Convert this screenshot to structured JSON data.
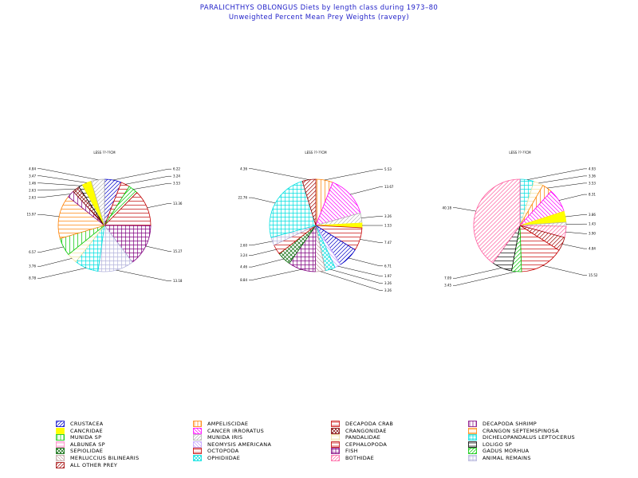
{
  "title": "PARALICHTHYS OBLONGUS Diets by length class during 1973–80",
  "subtitle": "Unweighted Percent Mean Prey Weights (ravepy)",
  "chart_data": [
    {
      "type": "pie",
      "title": "LESS ??-??CM",
      "slices": [
        {
          "category": "CRUSTACEA",
          "value": 6.22
        },
        {
          "category": "OCTOPODA",
          "value": 3.24
        },
        {
          "category": "GADUS MORHUA",
          "value": 3.53
        },
        {
          "category": "CEPHALOPODA",
          "value": 13.36
        },
        {
          "category": "FISH",
          "value": 15.27
        },
        {
          "category": "ANIMAL REMAINS",
          "value": 13.18
        },
        {
          "category": "DICHELOPANDALUS LEPTOCERUS",
          "value": 8.78
        },
        {
          "category": "PANDALIDAE",
          "value": 3.76
        },
        {
          "category": "MUNIDA SP",
          "value": 6.57
        },
        {
          "category": "CRANGON SEPTEMSPINOSA",
          "value": 15.97
        },
        {
          "category": "DECAPODA SHRIMP",
          "value": 2.63
        },
        {
          "category": "CRANGONIDAE",
          "value": 2.63
        },
        {
          "category": "LOLIGO SP",
          "value": 1.46
        },
        {
          "category": "CANCRIDAE",
          "value": 3.47
        },
        {
          "category": "MUNIDA IRIS",
          "value": 4.84
        }
      ],
      "labels": [
        "15.97",
        "6.57",
        "3.76",
        "8.78",
        "13.18",
        "2.63",
        "2.63",
        "1.46",
        "3.47",
        "4.84",
        "6.22",
        "3.24",
        "3.53",
        "13.36",
        "15.27"
      ]
    },
    {
      "type": "pie",
      "title": "LESS ??-??CM",
      "slices": [
        {
          "category": "AMPELISCIDAE",
          "value": 5.53
        },
        {
          "category": "CANCER IRRORATUS",
          "value": 13.67
        },
        {
          "category": "MUNIDA IRIS",
          "value": 3.26
        },
        {
          "category": "CANCRIDAE",
          "value": 1.53
        },
        {
          "category": "DECAPODA CRAB",
          "value": 7.47
        },
        {
          "category": "CRUSTACEA",
          "value": 6.71
        },
        {
          "category": "NEOMYSIS AMERICANA",
          "value": 1.97
        },
        {
          "category": "OPHIDIIDAE",
          "value": 3.26
        },
        {
          "category": "MERLUCCIUS BILINEARIS",
          "value": 3.26
        },
        {
          "category": "FISH",
          "value": 8.84
        },
        {
          "category": "SEPIOLIDAE",
          "value": 4.46
        },
        {
          "category": "OCTOPODA",
          "value": 3.24
        },
        {
          "category": "ANIMAL REMAINS",
          "value": 2.6
        },
        {
          "category": "DICHELOPANDALUS LEPTOCERUS",
          "value": 22.76
        },
        {
          "category": "ALL OTHER PREY",
          "value": 4.36
        }
      ],
      "labels": [
        "4.36",
        "5.53",
        "22.76",
        "2.60",
        "3.24",
        "4.46",
        "13.67",
        "3.26",
        "1.53",
        "7.47",
        "6.71",
        "1.97",
        "3.26",
        "3.26",
        "8.84"
      ]
    },
    {
      "type": "pie",
      "title": "LESS ??-??CM",
      "slices": [
        {
          "category": "DICHELOPANDALUS LEPTOCERUS",
          "value": 4.93
        },
        {
          "category": "PANDALIDAE",
          "value": 3.36
        },
        {
          "category": "AMPELISCIDAE",
          "value": 3.53
        },
        {
          "category": "CANCER IRRORATUS",
          "value": 8.31
        },
        {
          "category": "CANCRIDAE",
          "value": 3.86
        },
        {
          "category": "MUNIDA IRIS",
          "value": 1.43
        },
        {
          "category": "BOTHIDAE",
          "value": 3.9
        },
        {
          "category": "ALL OTHER PREY",
          "value": 4.84
        },
        {
          "category": "DECAPODA CRAB",
          "value": 15.52
        },
        {
          "category": "GADUS MORHUA",
          "value": 3.45
        },
        {
          "category": "LOLIGO SP",
          "value": 7.09
        },
        {
          "category": "BOTHIDAE",
          "value": 40.18
        }
      ],
      "labels": [
        "40.18",
        "4.93",
        "3.36",
        "3.53",
        "8.31",
        "3.86",
        "1.43",
        "3.90",
        "4.84",
        "15.52",
        "7.09",
        "3.45"
      ]
    }
  ],
  "legend": [
    {
      "name": "CRUSTACEA",
      "color": "#0000c8",
      "pattern": "diag-r"
    },
    {
      "name": "AMPELISCIDAE",
      "color": "#ff8000",
      "pattern": "vert"
    },
    {
      "name": "DECAPODA CRAB",
      "color": "#c80000",
      "pattern": "horiz"
    },
    {
      "name": "DECAPODA SHRIMP",
      "color": "#800080",
      "pattern": "vert"
    },
    {
      "name": "CANCRIDAE",
      "color": "#ffff00",
      "pattern": "solid"
    },
    {
      "name": "CANCER IRRORATUS",
      "color": "#ff00ff",
      "pattern": "diag-l"
    },
    {
      "name": "CRANGONIDAE",
      "color": "#800000",
      "pattern": "cross-diag"
    },
    {
      "name": "CRANGON SEPTEMSPINOSA",
      "color": "#ff8000",
      "pattern": "horiz"
    },
    {
      "name": "MUNIDA SP",
      "color": "#00c800",
      "pattern": "vert"
    },
    {
      "name": "MUNIDA IRIS",
      "color": "#b4b4b4",
      "pattern": "diag-r"
    },
    {
      "name": "PANDALIDAE",
      "color": "#f0e0a0",
      "pattern": "horiz"
    },
    {
      "name": "DICHELOPANDALUS LEPTOCERUS",
      "color": "#00e0e0",
      "pattern": "cross"
    },
    {
      "name": "ALBUNEA SP",
      "color": "#ff80c0",
      "pattern": "horiz"
    },
    {
      "name": "NEOMYSIS AMERICANA",
      "color": "#c0a0ff",
      "pattern": "diag-l"
    },
    {
      "name": "CEPHALOPODA",
      "color": "#c00000",
      "pattern": "horiz"
    },
    {
      "name": "LOLIGO SP",
      "color": "#000000",
      "pattern": "horiz"
    },
    {
      "name": "SEPIOLIDAE",
      "color": "#006400",
      "pattern": "cross-diag"
    },
    {
      "name": "OCTOPODA",
      "color": "#c80000",
      "pattern": "horiz"
    },
    {
      "name": "FISH",
      "color": "#800080",
      "pattern": "cross"
    },
    {
      "name": "GADUS MORHUA",
      "color": "#00c800",
      "pattern": "diag-r"
    },
    {
      "name": "MERLUCCIUS BILINEARIS",
      "color": "#c0a0a0",
      "pattern": "diag-l"
    },
    {
      "name": "OPHIDIIDAE",
      "color": "#00e0e0",
      "pattern": "cross-diag"
    },
    {
      "name": "BOTHIDAE",
      "color": "#ff60a0",
      "pattern": "diag-r"
    },
    {
      "name": "ANIMAL REMAINS",
      "color": "#b4b4dc",
      "pattern": "cross"
    },
    {
      "name": "ALL OTHER PREY",
      "color": "#a00000",
      "pattern": "diag-r"
    }
  ]
}
